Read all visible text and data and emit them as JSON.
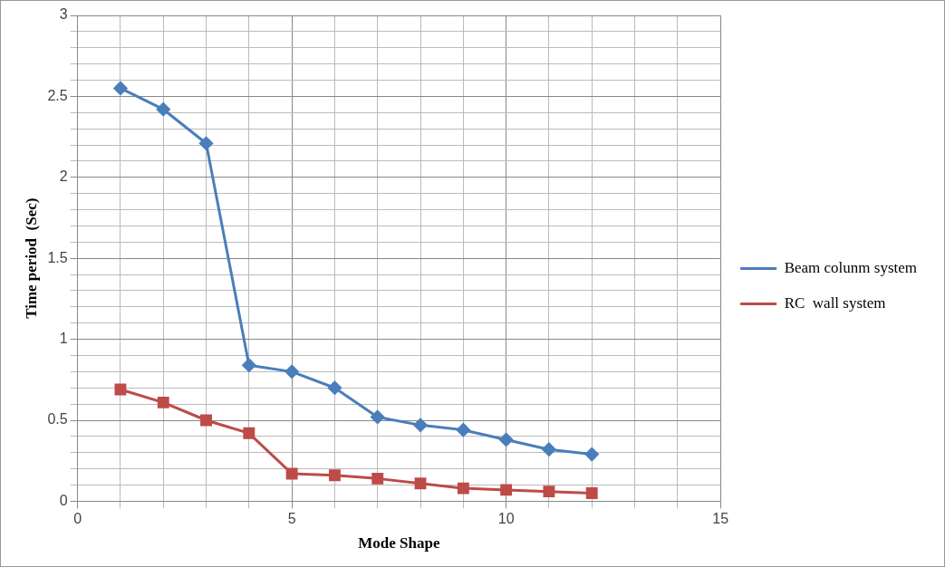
{
  "chart_data": {
    "type": "line",
    "xlabel": "Mode Shape",
    "ylabel": "Time period  (Sec)",
    "x": [
      1,
      2,
      3,
      4,
      5,
      6,
      7,
      8,
      9,
      10,
      11,
      12
    ],
    "series": [
      {
        "name": "Beam colunm system",
        "color": "#4a7ebb",
        "marker": "diamond",
        "values": [
          2.55,
          2.42,
          2.21,
          0.84,
          0.8,
          0.7,
          0.52,
          0.47,
          0.44,
          0.38,
          0.32,
          0.29
        ]
      },
      {
        "name": "RC  wall system",
        "color": "#be4b48",
        "marker": "square",
        "values": [
          0.69,
          0.61,
          0.5,
          0.42,
          0.17,
          0.16,
          0.14,
          0.11,
          0.08,
          0.07,
          0.06,
          0.05
        ]
      }
    ],
    "xlim": [
      0,
      15
    ],
    "xticks": [
      0,
      {
        "value": 1,
        "label": null
      },
      {
        "value": 2,
        "label": null
      },
      {
        "value": 3,
        "label": null
      },
      {
        "value": 4,
        "label": null
      },
      5,
      {
        "value": 6,
        "label": null
      },
      {
        "value": 7,
        "label": null
      },
      {
        "value": 8,
        "label": null
      },
      {
        "value": 9,
        "label": null
      },
      10,
      {
        "value": 11,
        "label": null
      },
      {
        "value": 12,
        "label": null
      },
      {
        "value": 13,
        "label": null
      },
      {
        "value": 14,
        "label": null
      },
      15
    ],
    "ylim": [
      0,
      3
    ],
    "yticks": [
      0,
      {
        "value": 0.1,
        "label": null
      },
      {
        "value": 0.2,
        "label": null
      },
      {
        "value": 0.3,
        "label": null
      },
      {
        "value": 0.4,
        "label": null
      },
      0.5,
      {
        "value": 0.6,
        "label": null
      },
      {
        "value": 0.7,
        "label": null
      },
      {
        "value": 0.8,
        "label": null
      },
      {
        "value": 0.9,
        "label": null
      },
      1,
      {
        "value": 1.1,
        "label": null
      },
      {
        "value": 1.2,
        "label": null
      },
      {
        "value": 1.3,
        "label": null
      },
      {
        "value": 1.4,
        "label": null
      },
      1.5,
      {
        "value": 1.6,
        "label": null
      },
      {
        "value": 1.7,
        "label": null
      },
      {
        "value": 1.8,
        "label": null
      },
      {
        "value": 1.9,
        "label": null
      },
      2,
      {
        "value": 2.1,
        "label": null
      },
      {
        "value": 2.2,
        "label": null
      },
      {
        "value": 2.3,
        "label": null
      },
      {
        "value": 2.4,
        "label": null
      },
      2.5,
      {
        "value": 2.6,
        "label": null
      },
      {
        "value": 2.7,
        "label": null
      },
      {
        "value": 2.8,
        "label": null
      },
      {
        "value": 2.9,
        "label": null
      },
      3
    ],
    "grid": true,
    "legend": "right",
    "line_style": "solid"
  }
}
